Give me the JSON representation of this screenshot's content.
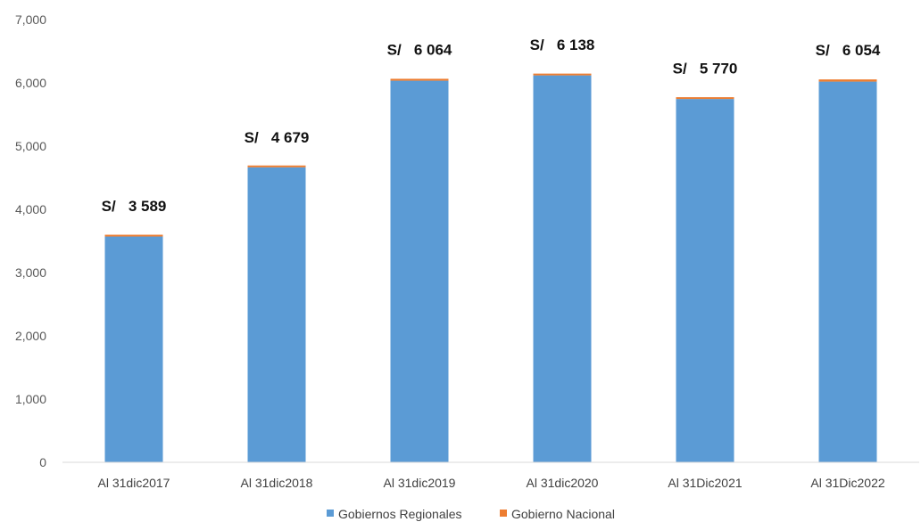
{
  "chart_data": {
    "type": "bar",
    "stacked": true,
    "title": "",
    "xlabel": "",
    "ylabel": "",
    "ylim": [
      0,
      7000
    ],
    "yticks": [
      0,
      1000,
      2000,
      3000,
      4000,
      5000,
      6000,
      7000
    ],
    "ytick_labels": [
      "0",
      "1,000",
      "2,000",
      "3,000",
      "4,000",
      "5,000",
      "6,000",
      "7,000"
    ],
    "categories": [
      "Al 31dic2017",
      "Al 31dic2018",
      "Al 31dic2019",
      "Al 31dic2020",
      "Al 31Dic2021",
      "Al 31Dic2022"
    ],
    "series": [
      {
        "name": "Gobiernos Regionales",
        "color": "#5B9BD5",
        "values": [
          3570,
          4665,
          6034,
          6118,
          5745,
          6020
        ]
      },
      {
        "name": "Gobierno Nacional",
        "color": "#ED7D31",
        "values": [
          19,
          14,
          30,
          20,
          25,
          34
        ]
      }
    ],
    "total_labels": [
      "S/   3 589",
      "S/   4 679",
      "S/   6 064",
      "S/   6 138",
      "S/   5 770",
      "S/   6 054"
    ],
    "grid": false,
    "legend_position": "bottom-center"
  }
}
